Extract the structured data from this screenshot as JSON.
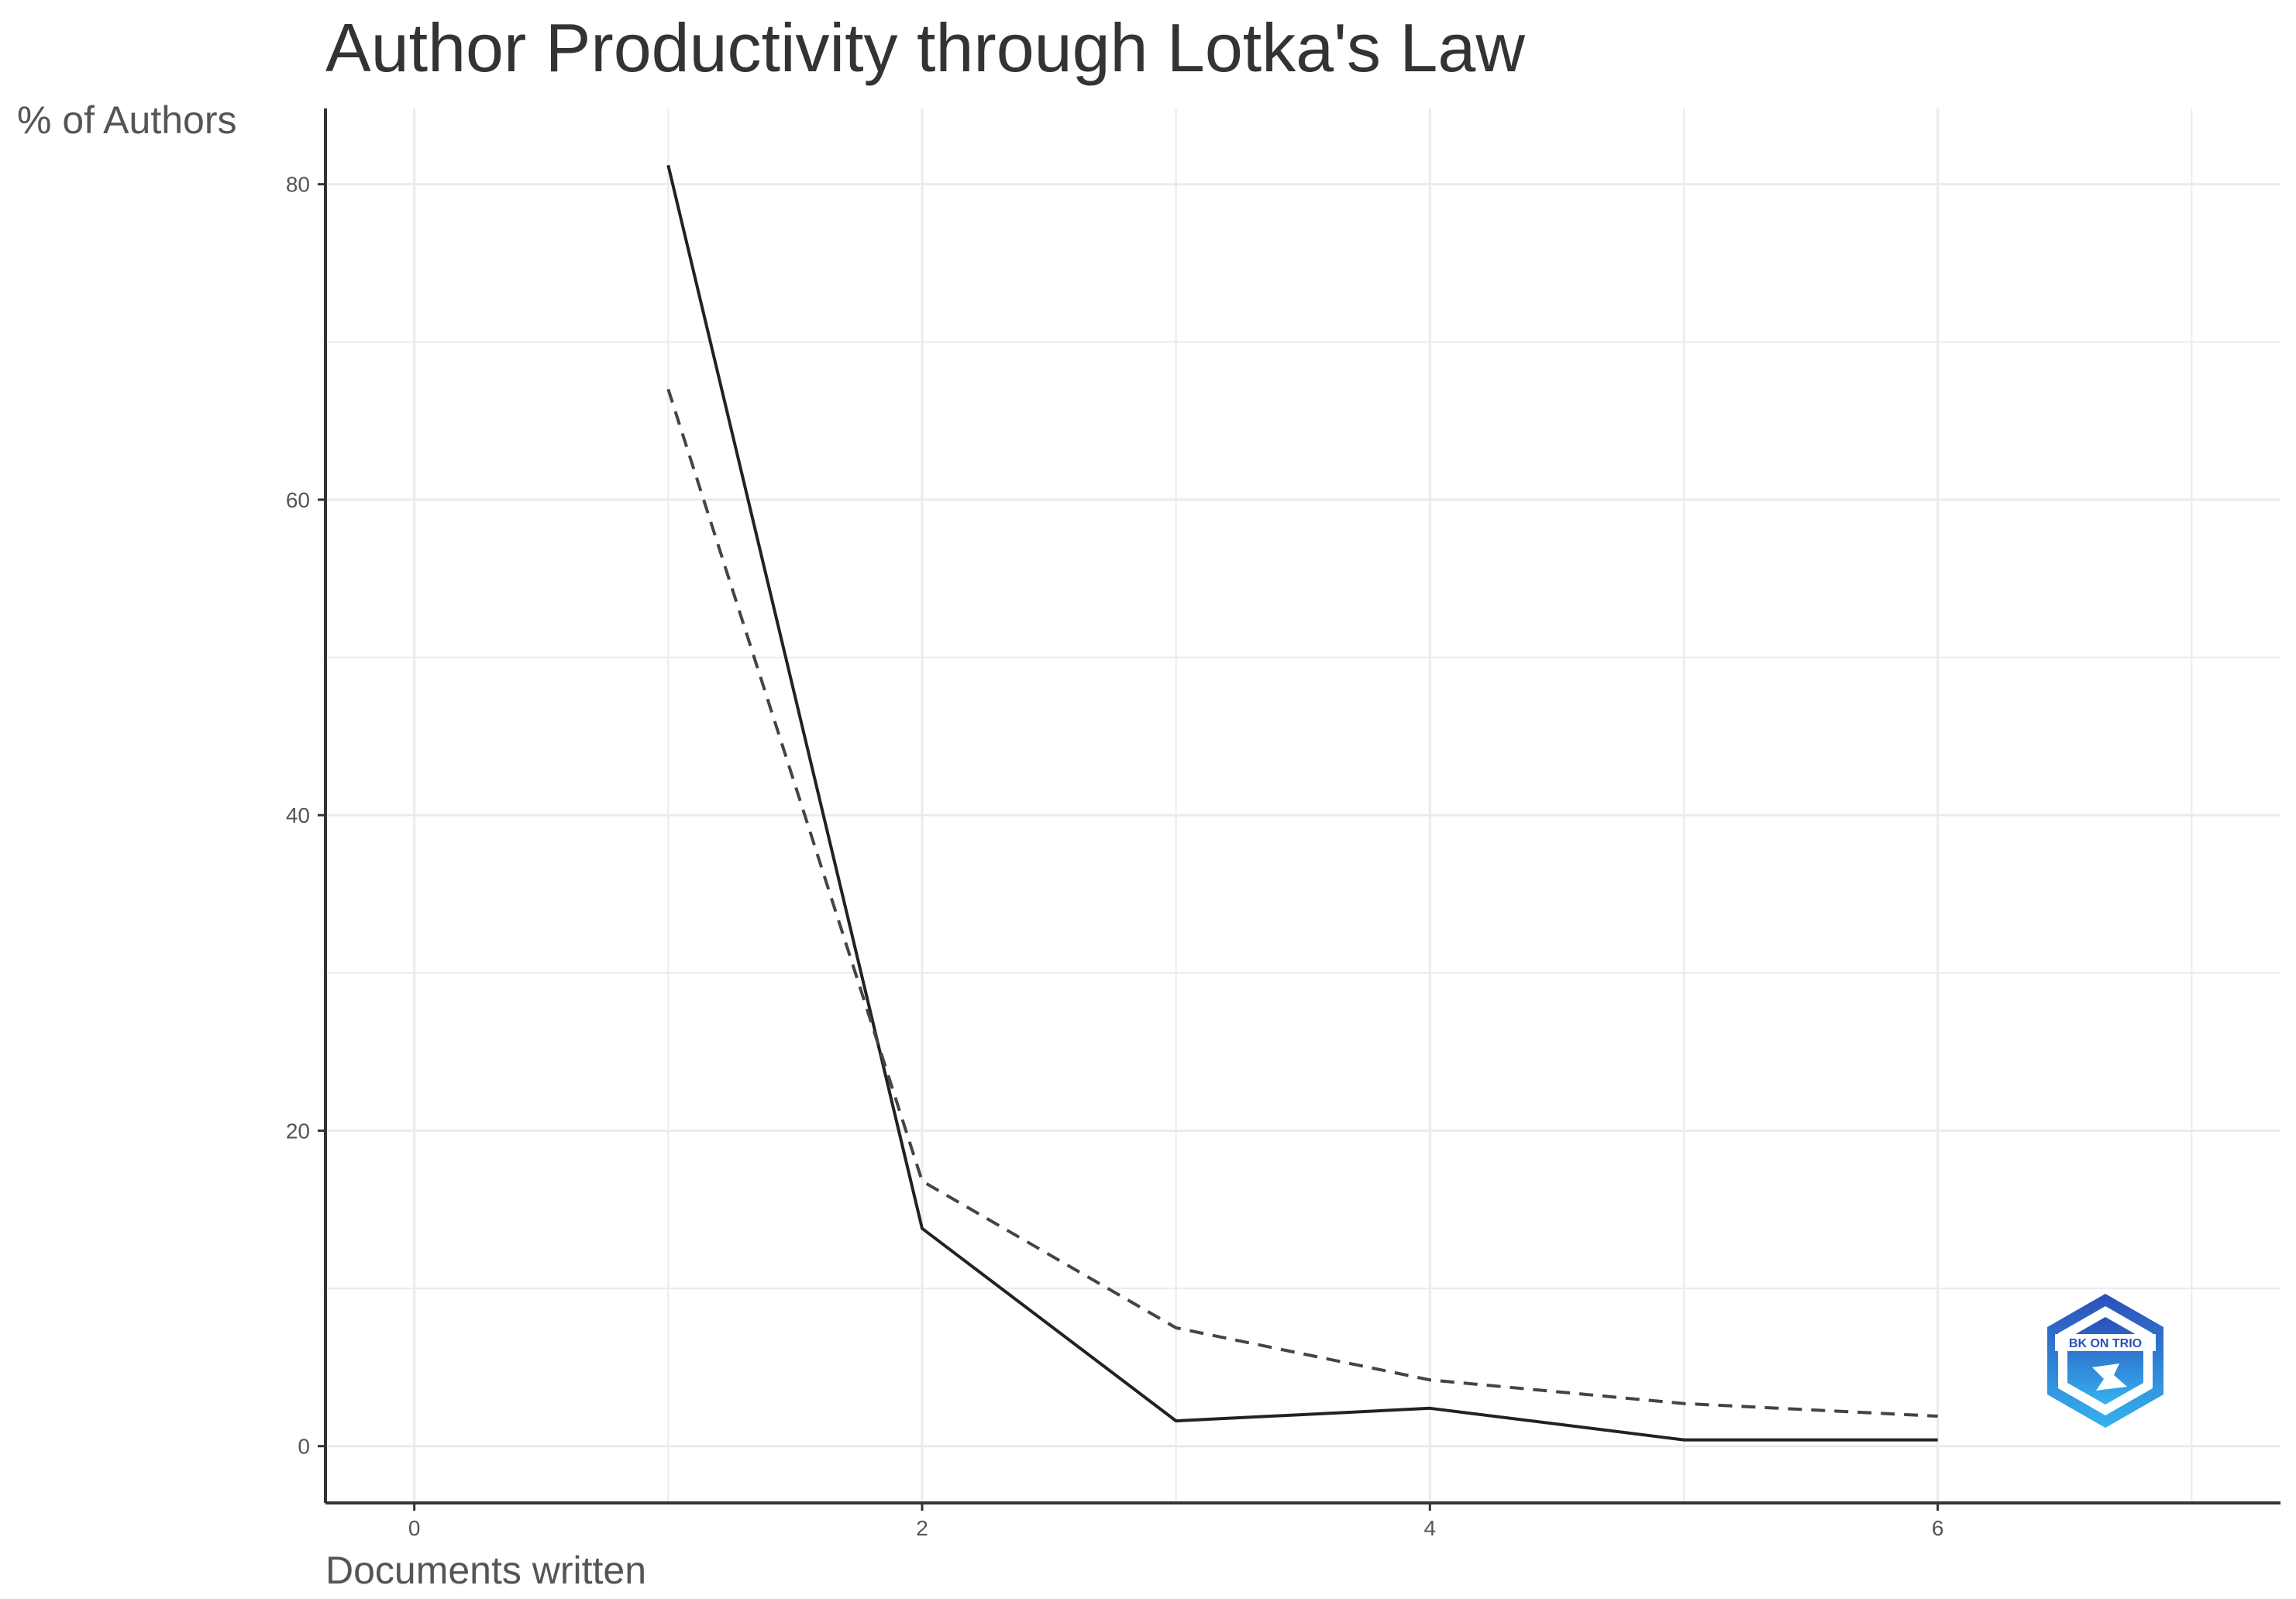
{
  "chart_data": {
    "type": "line",
    "title": "Author Productivity through Lotka's Law",
    "xlabel": "Documents written",
    "ylabel": "% of Authors",
    "xlim": [
      -0.35,
      7.35
    ],
    "ylim": [
      -3.6,
      84.8
    ],
    "x_ticks": [
      0,
      2,
      4,
      6
    ],
    "y_ticks": [
      0,
      20,
      40,
      60,
      80
    ],
    "grid": true,
    "series": [
      {
        "style": "solid",
        "color": "#222222",
        "x": [
          1,
          2,
          3,
          4,
          5,
          6
        ],
        "values": [
          81.2,
          13.8,
          1.6,
          2.4,
          0.4,
          0.4
        ]
      },
      {
        "style": "dashed",
        "color": "#444444",
        "x": [
          1,
          2,
          3,
          4,
          5,
          6
        ],
        "values": [
          67.0,
          16.8,
          7.5,
          4.2,
          2.7,
          1.9
        ]
      }
    ]
  },
  "colors": {
    "grid": "#ebebeb",
    "axis": "#333333",
    "logo_dark": "#2b4fb8",
    "logo_light": "#35b2f0"
  },
  "logo": {
    "icon": "hexagon-logo-icon",
    "text": "BK ON TRIO"
  }
}
